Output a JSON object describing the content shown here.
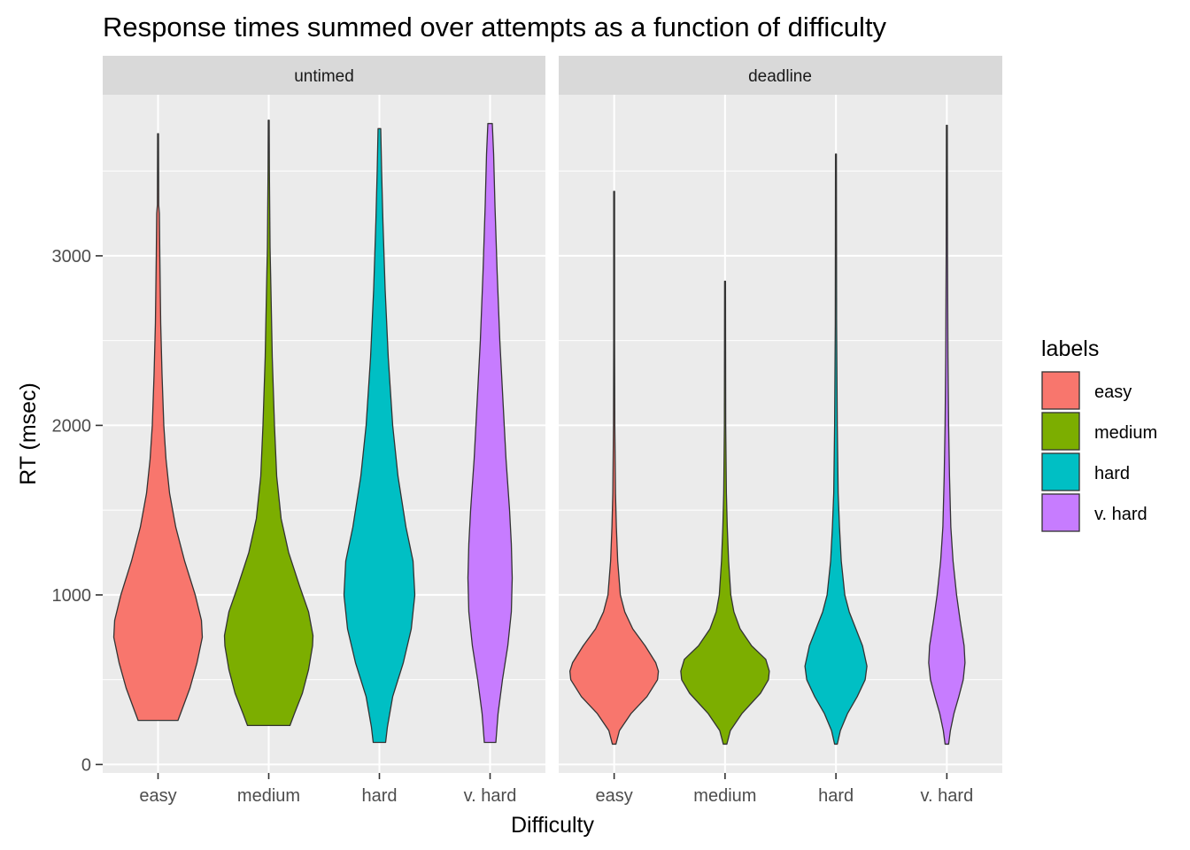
{
  "chart_data": {
    "type": "violin",
    "title": "Response times summed over attempts as a function of difficulty",
    "xlabel": "Difficulty",
    "ylabel": "RT (msec)",
    "ylim": [
      -50,
      3950
    ],
    "yticks": [
      0,
      1000,
      2000,
      3000
    ],
    "grid": true,
    "legend": {
      "title": "labels",
      "position": "right",
      "entries": [
        {
          "label": "easy",
          "color": "#F8766D"
        },
        {
          "label": "medium",
          "color": "#7CAE00"
        },
        {
          "label": "hard",
          "color": "#00BFC4"
        },
        {
          "label": "v. hard",
          "color": "#C77CFF"
        }
      ]
    },
    "categories": [
      "easy",
      "medium",
      "hard",
      "v. hard"
    ],
    "panels": [
      {
        "label": "untimed",
        "violins": [
          {
            "category": "easy",
            "min": 260,
            "max": 3720,
            "profile": [
              [
                260,
                0.45
              ],
              [
                330,
                0.55
              ],
              [
                450,
                0.72
              ],
              [
                600,
                0.88
              ],
              [
                750,
                1.0
              ],
              [
                850,
                0.98
              ],
              [
                1000,
                0.84
              ],
              [
                1200,
                0.6
              ],
              [
                1400,
                0.4
              ],
              [
                1600,
                0.26
              ],
              [
                1800,
                0.18
              ],
              [
                2000,
                0.13
              ],
              [
                2300,
                0.09
              ],
              [
                2600,
                0.06
              ],
              [
                3000,
                0.04
              ],
              [
                3250,
                0.03
              ],
              [
                3300,
                0.015
              ],
              [
                3720,
                0.01
              ]
            ]
          },
          {
            "category": "medium",
            "min": 230,
            "max": 3800,
            "profile": [
              [
                230,
                0.48
              ],
              [
                300,
                0.58
              ],
              [
                420,
                0.76
              ],
              [
                560,
                0.9
              ],
              [
                700,
                0.99
              ],
              [
                760,
                1.0
              ],
              [
                900,
                0.9
              ],
              [
                1050,
                0.7
              ],
              [
                1250,
                0.45
              ],
              [
                1450,
                0.28
              ],
              [
                1700,
                0.18
              ],
              [
                2000,
                0.13
              ],
              [
                2400,
                0.08
              ],
              [
                2800,
                0.05
              ],
              [
                3050,
                0.03
              ],
              [
                3500,
                0.015
              ],
              [
                3800,
                0.01
              ]
            ]
          },
          {
            "category": "hard",
            "min": 130,
            "max": 3750,
            "profile": [
              [
                130,
                0.14
              ],
              [
                220,
                0.18
              ],
              [
                400,
                0.3
              ],
              [
                600,
                0.54
              ],
              [
                800,
                0.72
              ],
              [
                1000,
                0.8
              ],
              [
                1200,
                0.76
              ],
              [
                1400,
                0.6
              ],
              [
                1700,
                0.42
              ],
              [
                2000,
                0.3
              ],
              [
                2400,
                0.2
              ],
              [
                2800,
                0.13
              ],
              [
                3200,
                0.08
              ],
              [
                3500,
                0.05
              ],
              [
                3750,
                0.03
              ]
            ]
          },
          {
            "category": "v. hard",
            "min": 130,
            "max": 3780,
            "profile": [
              [
                130,
                0.13
              ],
              [
                300,
                0.18
              ],
              [
                500,
                0.28
              ],
              [
                700,
                0.4
              ],
              [
                900,
                0.48
              ],
              [
                1100,
                0.5
              ],
              [
                1300,
                0.48
              ],
              [
                1500,
                0.44
              ],
              [
                1800,
                0.36
              ],
              [
                2100,
                0.3
              ],
              [
                2500,
                0.22
              ],
              [
                2900,
                0.16
              ],
              [
                3300,
                0.11
              ],
              [
                3600,
                0.08
              ],
              [
                3780,
                0.05
              ]
            ]
          }
        ]
      },
      {
        "label": "deadline",
        "violins": [
          {
            "category": "easy",
            "min": 120,
            "max": 3380,
            "profile": [
              [
                120,
                0.04
              ],
              [
                200,
                0.12
              ],
              [
                300,
                0.38
              ],
              [
                400,
                0.74
              ],
              [
                500,
                0.98
              ],
              [
                550,
                1.0
              ],
              [
                600,
                0.94
              ],
              [
                700,
                0.7
              ],
              [
                800,
                0.42
              ],
              [
                900,
                0.24
              ],
              [
                1000,
                0.14
              ],
              [
                1200,
                0.08
              ],
              [
                1400,
                0.05
              ],
              [
                1600,
                0.03
              ],
              [
                2000,
                0.015
              ],
              [
                2500,
                0.01
              ],
              [
                3380,
                0.01
              ]
            ]
          },
          {
            "category": "medium",
            "min": 120,
            "max": 2850,
            "profile": [
              [
                120,
                0.04
              ],
              [
                200,
                0.12
              ],
              [
                300,
                0.38
              ],
              [
                420,
                0.8
              ],
              [
                500,
                0.98
              ],
              [
                550,
                1.0
              ],
              [
                620,
                0.92
              ],
              [
                700,
                0.6
              ],
              [
                800,
                0.34
              ],
              [
                900,
                0.2
              ],
              [
                1000,
                0.13
              ],
              [
                1200,
                0.08
              ],
              [
                1400,
                0.05
              ],
              [
                1600,
                0.03
              ],
              [
                2000,
                0.015
              ],
              [
                2850,
                0.01
              ]
            ]
          },
          {
            "category": "hard",
            "min": 120,
            "max": 3600,
            "profile": [
              [
                120,
                0.03
              ],
              [
                200,
                0.1
              ],
              [
                300,
                0.26
              ],
              [
                400,
                0.48
              ],
              [
                500,
                0.66
              ],
              [
                580,
                0.7
              ],
              [
                700,
                0.6
              ],
              [
                800,
                0.45
              ],
              [
                900,
                0.3
              ],
              [
                1000,
                0.2
              ],
              [
                1200,
                0.12
              ],
              [
                1400,
                0.08
              ],
              [
                1600,
                0.05
              ],
              [
                2000,
                0.03
              ],
              [
                2600,
                0.015
              ],
              [
                3600,
                0.01
              ]
            ]
          },
          {
            "category": "v. hard",
            "min": 120,
            "max": 3770,
            "profile": [
              [
                120,
                0.04
              ],
              [
                200,
                0.08
              ],
              [
                300,
                0.16
              ],
              [
                400,
                0.27
              ],
              [
                500,
                0.37
              ],
              [
                600,
                0.41
              ],
              [
                700,
                0.39
              ],
              [
                850,
                0.3
              ],
              [
                1000,
                0.22
              ],
              [
                1200,
                0.14
              ],
              [
                1400,
                0.09
              ],
              [
                1700,
                0.06
              ],
              [
                2000,
                0.04
              ],
              [
                2400,
                0.025
              ],
              [
                3000,
                0.015
              ],
              [
                3770,
                0.01
              ]
            ]
          }
        ]
      }
    ]
  }
}
